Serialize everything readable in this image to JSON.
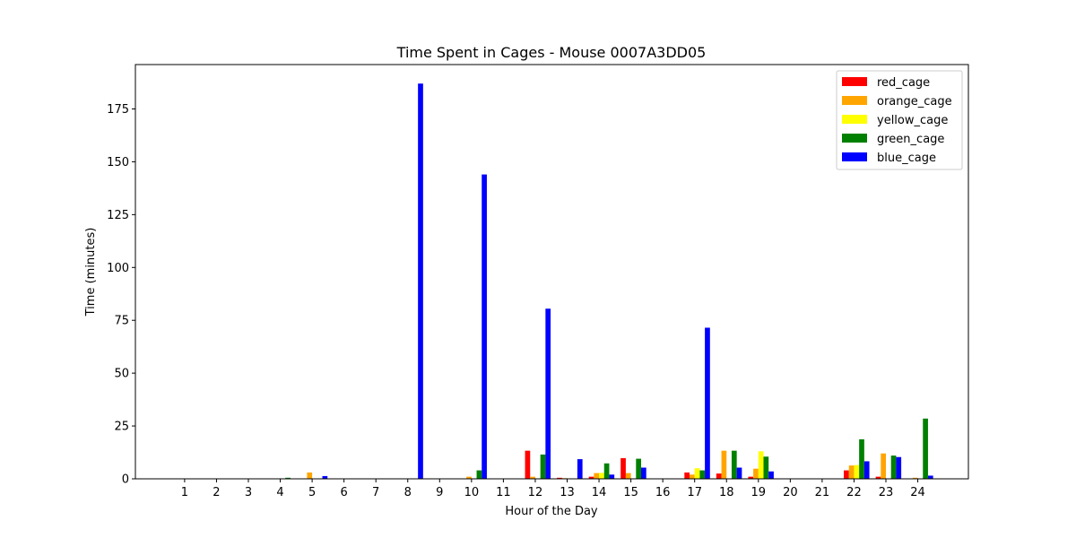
{
  "chart_data": {
    "type": "bar",
    "title": "Time Spent in Cages - Mouse 0007A3DD05",
    "xlabel": "Hour of the Day",
    "ylabel": "Time (minutes)",
    "categories": [
      "1",
      "2",
      "3",
      "4",
      "5",
      "6",
      "7",
      "8",
      "9",
      "10",
      "11",
      "12",
      "13",
      "14",
      "15",
      "16",
      "17",
      "18",
      "19",
      "20",
      "21",
      "22",
      "23",
      "24"
    ],
    "ylim": [
      0,
      196
    ],
    "yticks": [
      0,
      25,
      50,
      75,
      100,
      125,
      150,
      175
    ],
    "legend_position": "top-right",
    "grid": false,
    "series": [
      {
        "name": "red_cage",
        "color": "#ff0000",
        "values": [
          0,
          0,
          0,
          0,
          0,
          0,
          0,
          0,
          0,
          0,
          0,
          13.3,
          0.5,
          1,
          9.8,
          0,
          3,
          2.5,
          1,
          0,
          0,
          4,
          1,
          0
        ]
      },
      {
        "name": "orange_cage",
        "color": "#ffa500",
        "values": [
          0,
          0,
          0,
          0,
          3,
          0,
          0,
          0,
          0,
          1,
          0,
          1,
          0.3,
          2.7,
          2.7,
          0,
          2,
          13.3,
          4.8,
          0,
          0,
          6.3,
          12,
          0.5
        ]
      },
      {
        "name": "yellow_cage",
        "color": "#ffff00",
        "values": [
          0,
          0,
          0,
          0,
          0.2,
          0,
          0,
          0,
          0,
          0,
          0,
          0,
          0,
          2.8,
          0,
          0,
          5,
          0,
          13,
          0,
          0,
          6.5,
          0,
          0
        ]
      },
      {
        "name": "green_cage",
        "color": "#008000",
        "values": [
          0,
          0,
          0,
          0.5,
          0,
          0,
          0,
          0,
          0,
          4,
          0,
          11.5,
          0,
          7.3,
          9.5,
          0,
          4,
          13.3,
          10.5,
          0,
          0,
          18.7,
          11,
          28.5
        ]
      },
      {
        "name": "blue_cage",
        "color": "#0000ff",
        "values": [
          0,
          0,
          0,
          0,
          1.3,
          0,
          0,
          187,
          0,
          144,
          0,
          80.5,
          9.3,
          2,
          5.3,
          0,
          71.5,
          5.3,
          3.5,
          0,
          0,
          8.3,
          10.3,
          1.5
        ]
      }
    ]
  }
}
